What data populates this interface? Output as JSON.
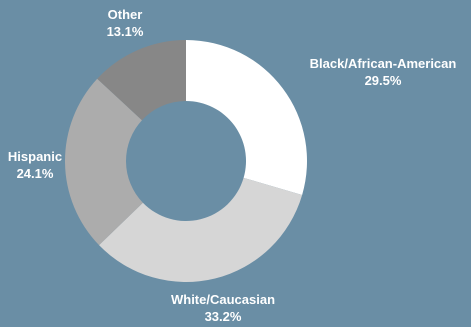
{
  "chart_data": {
    "type": "pie",
    "donut": true,
    "categories": [
      "Black/African-American",
      "White/Caucasian",
      "Hispanic",
      "Other"
    ],
    "values": [
      29.5,
      33.2,
      24.1,
      13.1
    ],
    "value_labels": [
      "29.5%",
      "33.2%",
      "24.1%",
      "13.1%"
    ],
    "colors": [
      "#ffffff",
      "#d6d6d6",
      "#acacac",
      "#878787"
    ],
    "start_angle_deg": 0,
    "direction": "clockwise",
    "legend": "none"
  },
  "background_color": "#6a8ea5",
  "label_color": "#ffffff"
}
